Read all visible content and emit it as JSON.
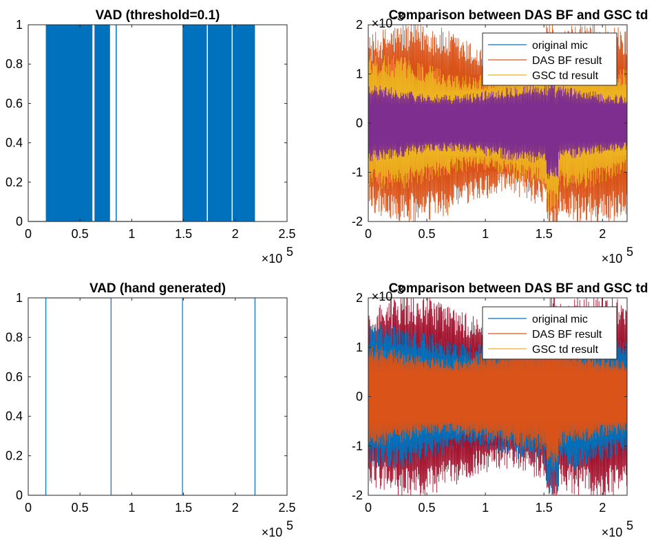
{
  "chart_data": [
    {
      "type": "area",
      "title": "VAD (threshold=0.1)",
      "xlabel": "",
      "ylabel": "",
      "xlim": [
        0,
        250000
      ],
      "ylim": [
        0,
        1
      ],
      "x_exponent_label": "×10",
      "x_exponent_power": "5",
      "x_ticks": [
        "0",
        "0.5",
        "1",
        "1.5",
        "2",
        "2.5"
      ],
      "y_ticks": [
        "0",
        "0.2",
        "0.4",
        "0.6",
        "0.8",
        "1"
      ],
      "grid": false,
      "series": [
        {
          "color": "#0072BD",
          "segments": [
            {
              "x": [
                0,
                17000
              ],
              "value": 0
            },
            {
              "x": [
                17000,
                62000
              ],
              "value": 1
            },
            {
              "x": [
                62000,
                64000
              ],
              "value": 0
            },
            {
              "x": [
                64000,
                79000
              ],
              "value": 1
            },
            {
              "x": [
                79000,
                84500
              ],
              "value": 0
            },
            {
              "x": [
                84500,
                85500
              ],
              "value": 1
            },
            {
              "x": [
                85500,
                149000
              ],
              "value": 0
            },
            {
              "x": [
                149000,
                172500
              ],
              "value": 1
            },
            {
              "x": [
                172500,
                173500
              ],
              "value": 0
            },
            {
              "x": [
                173500,
                196500
              ],
              "value": 1
            },
            {
              "x": [
                196500,
                197500
              ],
              "value": 0
            },
            {
              "x": [
                197500,
                219000
              ],
              "value": 1
            },
            {
              "x": [
                219000,
                219500
              ],
              "value": 0
            }
          ]
        }
      ]
    },
    {
      "type": "line",
      "title": "Comparison between DAS BF and GSC td",
      "xlabel": "",
      "ylabel": "",
      "xlim": [
        0,
        221000
      ],
      "ylim": [
        -2,
        2
      ],
      "x_exponent_label": "×10",
      "x_exponent_power": "5",
      "y_exponent_label": "×10",
      "y_exponent_power": "-3",
      "x_ticks": [
        "0",
        "0.5",
        "1",
        "1.5",
        "2"
      ],
      "y_ticks": [
        "-2",
        "-1",
        "0",
        "1",
        "2"
      ],
      "grid": false,
      "legend_position": "top-right",
      "legend": [
        "original mic",
        "DAS BF result",
        "GSC td result"
      ],
      "series": [
        {
          "name": "DAS BF result",
          "color": "#D95319",
          "amplitude": 1.8
        },
        {
          "name": "GSC td result",
          "color": "#EDB120",
          "amplitude": 1.2
        },
        {
          "name": "original mic",
          "color": "#7E2F8E",
          "amplitude": 0.7
        }
      ]
    },
    {
      "type": "line",
      "title": "VAD (hand generated)",
      "xlabel": "",
      "ylabel": "",
      "xlim": [
        0,
        250000
      ],
      "ylim": [
        0,
        1
      ],
      "x_exponent_label": "×10",
      "x_exponent_power": "5",
      "x_ticks": [
        "0",
        "0.5",
        "1",
        "1.5",
        "2",
        "2.5"
      ],
      "y_ticks": [
        "0",
        "0.2",
        "0.4",
        "0.6",
        "0.8",
        "1"
      ],
      "grid": false,
      "series": [
        {
          "color": "#0072BD",
          "x": [
            0,
            17000,
            17000,
            80000,
            80000,
            149000,
            149000,
            219000,
            219000
          ],
          "y": [
            0,
            0,
            1,
            1,
            0,
            0,
            1,
            1,
            0
          ]
        }
      ]
    },
    {
      "type": "line",
      "title": "Comparison between DAS BF and GSC td",
      "xlabel": "",
      "ylabel": "",
      "xlim": [
        0,
        221000
      ],
      "ylim": [
        -2,
        2
      ],
      "x_exponent_label": "×10",
      "x_exponent_power": "5",
      "y_exponent_label": "×10",
      "y_exponent_power": "-3",
      "x_ticks": [
        "0",
        "0.5",
        "1",
        "1.5",
        "2"
      ],
      "y_ticks": [
        "-2",
        "-1",
        "0",
        "1",
        "2"
      ],
      "grid": false,
      "legend_position": "top-right",
      "legend": [
        "original mic",
        "DAS BF result",
        "GSC td result"
      ],
      "series": [
        {
          "name": "GSC td result",
          "color": "#A2142F",
          "amplitude": 1.8
        },
        {
          "name": "original mic",
          "color": "#0072BD",
          "amplitude": 1.3
        },
        {
          "name": "DAS BF result",
          "color": "#D95319",
          "amplitude": 0.95
        }
      ]
    }
  ],
  "legend_colors": [
    "#0072BD",
    "#D95319",
    "#EDB120"
  ]
}
